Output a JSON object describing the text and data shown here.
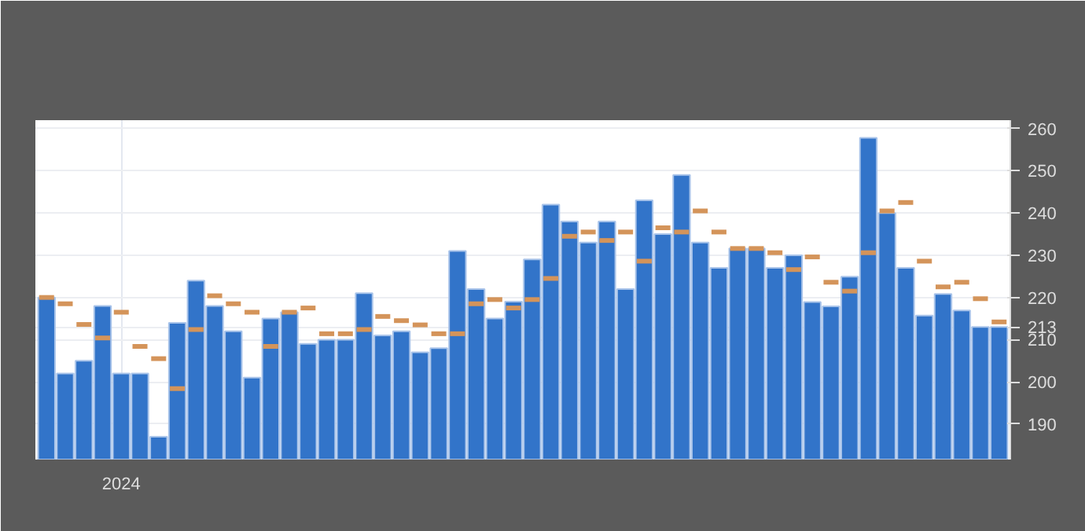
{
  "chart_data": {
    "type": "bar",
    "categories": [
      null,
      null,
      null,
      null,
      "2024",
      null,
      null,
      null,
      null,
      null,
      null,
      null,
      null,
      null,
      null,
      null,
      null,
      null,
      null,
      null,
      null,
      null,
      null,
      null,
      null,
      null,
      null,
      null,
      null,
      null,
      null,
      null,
      null,
      null,
      null,
      null,
      null,
      null,
      null,
      null,
      null,
      null,
      null,
      null,
      null,
      null,
      null,
      null,
      null,
      null,
      null,
      null
    ],
    "series": [
      {
        "color": "#3274c9",
        "values": [
          220,
          202,
          205,
          218,
          202,
          202,
          187,
          214,
          224,
          218,
          212,
          201,
          215,
          216.5,
          209,
          210,
          210,
          221,
          211,
          212,
          207,
          208,
          231,
          222,
          215,
          219,
          229,
          242,
          238,
          233,
          238,
          222,
          243,
          235,
          249,
          233,
          227,
          231.6,
          231.6,
          227,
          230,
          218.9,
          217.9,
          224.9,
          257.8,
          240,
          227,
          215.7,
          220.8,
          216.9,
          213,
          213
        ]
      },
      {
        "type": "scatter",
        "color": "#d4945a",
        "values": [
          220,
          218.5,
          213.6,
          210.4,
          216.5,
          208.4,
          205.5,
          198.4,
          212.4,
          220.4,
          218.5,
          216.5,
          208.4,
          216.5,
          217.5,
          211.4,
          211.4,
          212.4,
          215.5,
          214.5,
          213.5,
          211.4,
          211.4,
          218.5,
          219.5,
          217.5,
          219.5,
          224.5,
          234.5,
          235.5,
          233.5,
          235.5,
          228.6,
          236.5,
          235.5,
          240.5,
          235.5,
          231.6,
          231.6,
          230.6,
          226.6,
          229.6,
          223.6,
          221.5,
          230.6,
          240.5,
          242.5,
          228.6,
          222.5,
          223.6,
          219.7,
          214.2
        ]
      }
    ],
    "ylim": [
      181.6,
      262
    ],
    "yticks": [
      190,
      200,
      210,
      213,
      220,
      230,
      240,
      250,
      260
    ],
    "grid": true
  }
}
